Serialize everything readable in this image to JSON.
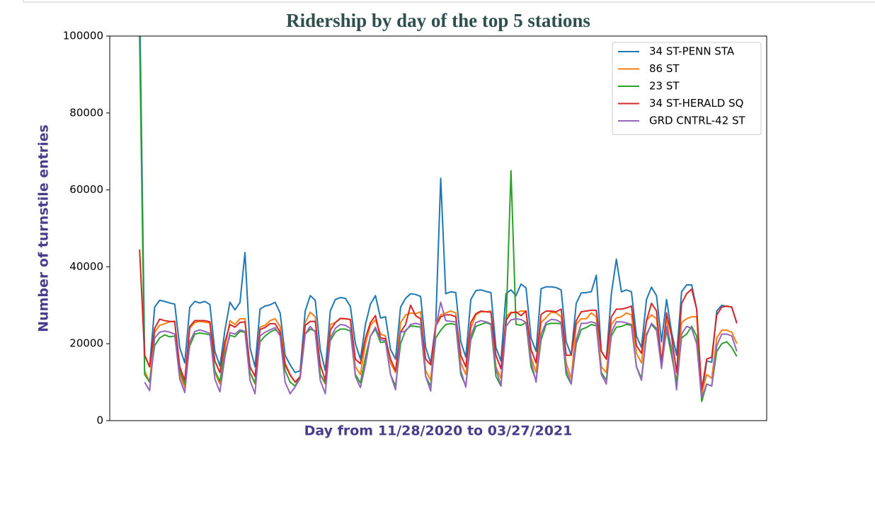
{
  "chart_data": {
    "type": "line",
    "title": "Ridership by day of the top 5 stations",
    "xlabel": "Day from 11/28/2020 to 03/27/2021",
    "ylabel": "Number of turnstile entries",
    "ylim": [
      0,
      100000
    ],
    "yticks": [
      0,
      20000,
      40000,
      60000,
      80000,
      100000
    ],
    "legend": "upper right",
    "series": [
      {
        "name": "34 ST-PENN STA",
        "color": "#1f77b4",
        "values": [
          110000,
          17000,
          14000,
          29500,
          31300,
          31000,
          30600,
          30300,
          19000,
          15000,
          29500,
          31000,
          30600,
          31000,
          30200,
          18000,
          14200,
          23500,
          30800,
          28800,
          30700,
          43700,
          19000,
          14000,
          29000,
          29800,
          30100,
          30800,
          28000,
          17000,
          14500,
          12500,
          13000,
          28500,
          32500,
          31300,
          18500,
          13000,
          28500,
          31500,
          32000,
          31800,
          29700,
          20000,
          16000,
          25000,
          30300,
          32500,
          26700,
          27000,
          18500,
          16000,
          29500,
          31800,
          33000,
          32800,
          32300,
          19000,
          15000,
          25000,
          63000,
          33000,
          33500,
          33300,
          20500,
          16500,
          31500,
          33800,
          34000,
          33600,
          33300,
          19000,
          15500,
          33000,
          34000,
          32500,
          35500,
          34500,
          21500,
          18000,
          34300,
          34800,
          34800,
          34600,
          34000,
          20500,
          17000,
          30500,
          33200,
          33300,
          33500,
          37800,
          18000,
          16000,
          33000,
          42000,
          33500,
          34000,
          33500,
          22000,
          19000,
          31500,
          34700,
          32500,
          20500,
          31500,
          23000,
          17000,
          33500,
          35300,
          35300,
          29000,
          6500,
          15500,
          15200,
          28500,
          30000,
          29700,
          29500,
          25300
        ]
      },
      {
        "name": "86 ST",
        "color": "#ff7f0e",
        "values": [
          null,
          13000,
          10000,
          23000,
          24800,
          25200,
          25700,
          25900,
          12000,
          8500,
          24000,
          25500,
          25800,
          25600,
          25400,
          12500,
          9500,
          19000,
          26000,
          25000,
          26500,
          26500,
          12500,
          9500,
          24300,
          24800,
          26000,
          26500,
          24500,
          15000,
          12000,
          10000,
          11000,
          25500,
          28200,
          27000,
          12000,
          9500,
          25000,
          25500,
          26500,
          26500,
          26300,
          14000,
          12000,
          20000,
          24800,
          26200,
          22500,
          22000,
          15000,
          12500,
          25500,
          27500,
          28000,
          27800,
          28300,
          13000,
          10500,
          25500,
          27500,
          28000,
          28500,
          28000,
          15000,
          12000,
          24000,
          27500,
          28300,
          28300,
          28500,
          14000,
          11000,
          27000,
          28200,
          28000,
          28500,
          28500,
          16500,
          12500,
          25500,
          26800,
          28200,
          28000,
          27000,
          15000,
          11000,
          25000,
          26500,
          26500,
          28000,
          27000,
          14000,
          12500,
          25000,
          26700,
          27000,
          28000,
          27500,
          17500,
          15000,
          26000,
          27500,
          26500,
          14500,
          27000,
          17000,
          10000,
          25500,
          26500,
          27000,
          27000,
          7000,
          12000,
          11000,
          21500,
          23500,
          23500,
          23000,
          20000
        ]
      },
      {
        "name": "23 ST",
        "color": "#2ca02c",
        "values": [
          100000,
          12000,
          10000,
          19500,
          21500,
          22300,
          21800,
          22000,
          13000,
          9500,
          19500,
          22500,
          22800,
          22600,
          22300,
          13000,
          10200,
          17500,
          22200,
          21800,
          23200,
          23000,
          12500,
          9800,
          20500,
          22000,
          23000,
          23700,
          22500,
          13000,
          10000,
          9000,
          11500,
          22500,
          23800,
          23300,
          12000,
          9800,
          20800,
          23000,
          23800,
          23800,
          23300,
          12000,
          9800,
          16500,
          22000,
          23800,
          20300,
          20500,
          12000,
          9000,
          20000,
          23500,
          24600,
          24500,
          24300,
          11500,
          9000,
          21500,
          23500,
          25000,
          25200,
          25000,
          12000,
          9000,
          21000,
          24500,
          25000,
          25500,
          25000,
          11500,
          9000,
          24000,
          65000,
          25000,
          24800,
          25500,
          14000,
          10500,
          21000,
          25000,
          25300,
          25300,
          25200,
          12000,
          9500,
          20000,
          23700,
          24200,
          25000,
          24700,
          12500,
          10500,
          22000,
          24300,
          24500,
          25000,
          24800,
          14000,
          11000,
          22500,
          25000,
          23500,
          14500,
          23500,
          17000,
          10000,
          21500,
          22500,
          24500,
          22000,
          5000,
          9500,
          9000,
          18000,
          20000,
          20500,
          19000,
          16700
        ]
      },
      {
        "name": "34 ST-HERALD SQ",
        "color": "#d62728",
        "values": [
          44500,
          17000,
          14000,
          24000,
          26400,
          26000,
          25800,
          25700,
          14000,
          10500,
          24500,
          26000,
          26000,
          26000,
          25700,
          15500,
          12500,
          20500,
          25000,
          24300,
          25500,
          25700,
          14000,
          11500,
          23700,
          24200,
          25200,
          25200,
          23000,
          14500,
          11800,
          10000,
          11500,
          24800,
          25800,
          25800,
          14500,
          10500,
          23500,
          25500,
          26600,
          26500,
          26300,
          16000,
          14800,
          21500,
          25500,
          27300,
          21500,
          21300,
          16000,
          13000,
          23000,
          25000,
          30000,
          27300,
          26500,
          16000,
          14500,
          24500,
          27000,
          27500,
          27500,
          27000,
          17000,
          14000,
          25500,
          27800,
          28500,
          28300,
          28200,
          17000,
          13500,
          26000,
          28000,
          28300,
          27300,
          28500,
          18500,
          15000,
          27600,
          28500,
          28500,
          28300,
          29000,
          17000,
          17000,
          26000,
          28300,
          28500,
          28700,
          28700,
          18000,
          16000,
          27000,
          29000,
          29000,
          29300,
          29800,
          19500,
          17500,
          26000,
          30500,
          28500,
          15000,
          28000,
          22000,
          12500,
          30500,
          33000,
          34200,
          29000,
          8000,
          16000,
          16500,
          27500,
          29500,
          29800,
          29500,
          25300
        ]
      },
      {
        "name": "GRD CNTRL-42 ST",
        "color": "#9467bd",
        "values": [
          null,
          10000,
          7800,
          21500,
          23000,
          23300,
          23000,
          22500,
          10800,
          7300,
          20500,
          23200,
          23600,
          23200,
          22700,
          10800,
          7500,
          16500,
          22900,
          22500,
          23600,
          23200,
          10500,
          7000,
          22000,
          23000,
          23600,
          24200,
          22000,
          10000,
          7000,
          8800,
          11000,
          22500,
          24500,
          23000,
          10500,
          7000,
          21500,
          24000,
          25000,
          24800,
          24000,
          11500,
          8600,
          14500,
          22000,
          24300,
          21000,
          20800,
          12000,
          8000,
          23000,
          23200,
          25000,
          25300,
          25000,
          11500,
          7700,
          24000,
          30800,
          26000,
          25800,
          25700,
          13000,
          8700,
          22000,
          25500,
          26000,
          25700,
          25200,
          13500,
          9000,
          24500,
          26200,
          26500,
          26300,
          25500,
          15500,
          10000,
          22500,
          25500,
          26300,
          26200,
          25500,
          13500,
          9500,
          21000,
          25300,
          25300,
          25700,
          25300,
          12000,
          9500,
          23000,
          25700,
          25700,
          25400,
          25000,
          14000,
          10500,
          22000,
          25300,
          24000,
          13500,
          24500,
          19000,
          8000,
          22500,
          24500,
          24000,
          20000,
          6000,
          9500,
          9000,
          19500,
          22500,
          22500,
          22000,
          18000
        ]
      }
    ]
  }
}
